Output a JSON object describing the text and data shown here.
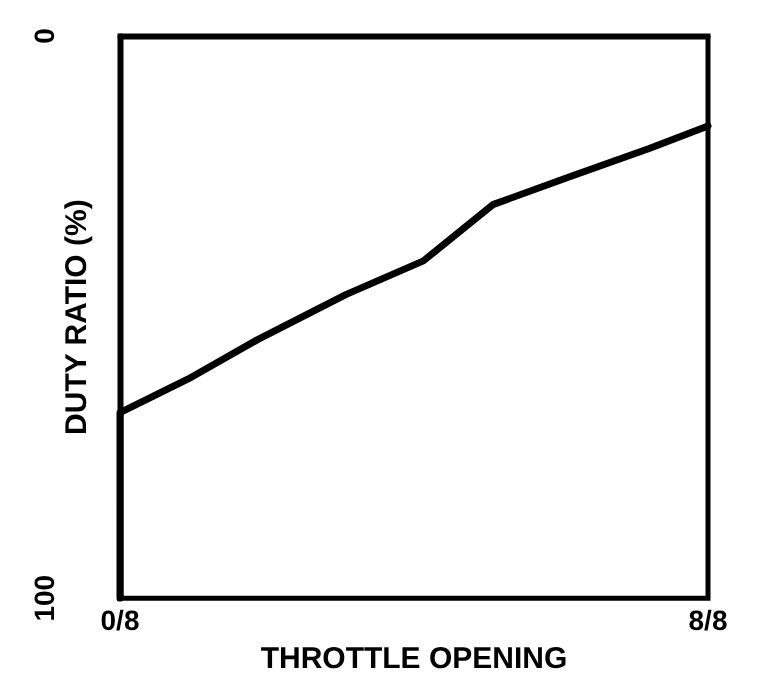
{
  "chart_data": {
    "type": "line",
    "xlabel": "THROTTLE OPENING",
    "ylabel": "DUTY RATIO (%)",
    "x": [
      0,
      0,
      0.116,
      0.234,
      0.384,
      0.516,
      0.634,
      0.766,
      0.9,
      1
    ],
    "series": [
      {
        "color": "#000000",
        "values": [
          100,
          67,
          61,
          54,
          46,
          40,
          30,
          25,
          20,
          16
        ]
      }
    ],
    "xlim": [
      0,
      1
    ],
    "xticks": [
      {
        "value": 0,
        "label": "0/8"
      },
      {
        "value": 1,
        "label": "8/8"
      }
    ],
    "ylim": [
      100,
      0
    ],
    "yticks": [
      0,
      100
    ],
    "grid": false,
    "marker": "none",
    "line_style": "solid"
  }
}
